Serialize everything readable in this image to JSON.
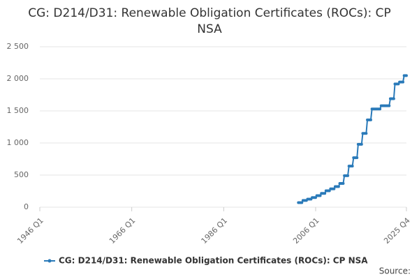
{
  "chart_data": {
    "type": "line",
    "title": "CG: D214/D31: Renewable Obligation Certificates (ROCs): CP NSA",
    "source": "Source:",
    "x": [
      2002.25,
      2002.5,
      2002.75,
      2003,
      2003.25,
      2003.5,
      2003.75,
      2004,
      2004.25,
      2004.5,
      2004.75,
      2005,
      2005.25,
      2005.5,
      2005.75,
      2006,
      2006.25,
      2006.5,
      2006.75,
      2007,
      2007.25,
      2007.5,
      2007.75,
      2008,
      2008.25,
      2008.5,
      2008.75,
      2009,
      2009.25,
      2009.5,
      2009.75,
      2010,
      2010.25,
      2010.5,
      2010.75,
      2011,
      2011.25,
      2011.5,
      2011.75,
      2012,
      2012.25,
      2012.5,
      2012.75,
      2013,
      2013.25,
      2013.5,
      2013.75,
      2014,
      2014.25,
      2014.5,
      2014.75,
      2015,
      2015.25,
      2015.5,
      2015.75,
      2016,
      2016.25,
      2016.5,
      2016.75,
      2017,
      2017.25,
      2017.5,
      2017.75,
      2018,
      2018.25,
      2018.5,
      2018.75,
      2019,
      2019.25,
      2019.5,
      2019.75,
      2020,
      2020.25,
      2020.5,
      2020.75,
      2021,
      2021.25,
      2021.5,
      2021.75,
      2022,
      2022.25,
      2022.5,
      2022.75,
      2023,
      2023.25,
      2023.5,
      2023.75,
      2024,
      2024.25,
      2024.5,
      2024.75,
      2025,
      2025.25,
      2025.5,
      2025.75
    ],
    "series": [
      {
        "name": "CG: D214/D31: Renewable Obligation Certificates (ROCs): CP NSA",
        "color": "#2a7ab9",
        "values": [
          70,
          70,
          70,
          70,
          105,
          105,
          105,
          105,
          125,
          125,
          125,
          125,
          150,
          150,
          150,
          150,
          180,
          180,
          180,
          180,
          215,
          215,
          215,
          215,
          255,
          255,
          255,
          255,
          285,
          285,
          285,
          285,
          320,
          320,
          320,
          320,
          370,
          370,
          370,
          370,
          490,
          490,
          490,
          490,
          640,
          640,
          640,
          640,
          770,
          770,
          770,
          770,
          980,
          980,
          980,
          980,
          1150,
          1150,
          1150,
          1150,
          1360,
          1360,
          1360,
          1360,
          1530,
          1530,
          1530,
          1530,
          1530,
          1530,
          1530,
          1530,
          1580,
          1580,
          1580,
          1580,
          1580,
          1580,
          1580,
          1580,
          1690,
          1690,
          1690,
          1690,
          1920,
          1920,
          1920,
          1920,
          1950,
          1950,
          1950,
          1950,
          2050,
          2050,
          2050
        ]
      }
    ],
    "xlim": [
      1946,
      2025.75
    ],
    "xticks": [
      {
        "value": 1946,
        "label": "1946 Q1"
      },
      {
        "value": 1966,
        "label": "1966 Q1"
      },
      {
        "value": 1986,
        "label": "1986 Q1"
      },
      {
        "value": 2006,
        "label": "2006 Q1"
      },
      {
        "value": 2025.75,
        "label": "2025 Q4"
      }
    ],
    "ylim": [
      0,
      2500
    ],
    "yticks": [
      0,
      500,
      {
        "value": 1000,
        "label": "1 000"
      },
      {
        "value": 1500,
        "label": "1 500"
      },
      {
        "value": 2000,
        "label": "2 000"
      },
      {
        "value": 2500,
        "label": "2 500"
      }
    ],
    "grid": true
  }
}
